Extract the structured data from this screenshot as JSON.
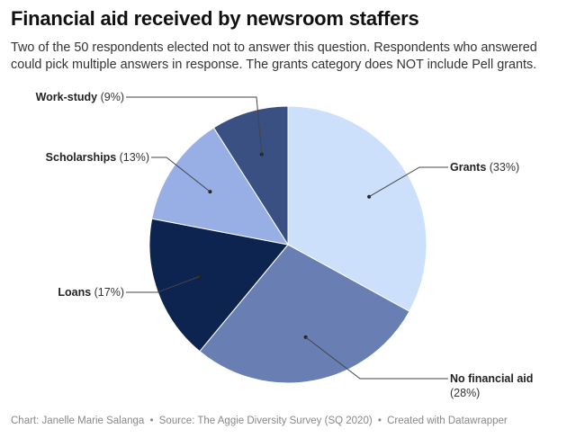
{
  "title": "Financial aid received by newsroom staffers",
  "subtitle": "Two of the 50 respondents elected not to answer this question. Respondents who answered could pick multiple answers in response. The grants category does NOT include Pell grants.",
  "footer": {
    "chart_credit": "Chart: Janelle Marie Salanga",
    "source": "Source: The Aggie Diversity Survey (SQ 2020)",
    "tool": "Created with Datawrapper",
    "separator": "•"
  },
  "chart_data": {
    "type": "pie",
    "slices": [
      {
        "label": "Grants",
        "value": 33,
        "pct_text": "(33%)",
        "color": "#cce0fc"
      },
      {
        "label": "No financial aid",
        "value": 28,
        "pct_text": "(28%)",
        "color": "#697fb3"
      },
      {
        "label": "Loans",
        "value": 17,
        "pct_text": "(17%)",
        "color": "#0d2450"
      },
      {
        "label": "Scholarships",
        "value": 13,
        "pct_text": "(13%)",
        "color": "#97afe5"
      },
      {
        "label": "Work-study",
        "value": 9,
        "pct_text": "(9%)",
        "color": "#3a5082"
      }
    ]
  }
}
